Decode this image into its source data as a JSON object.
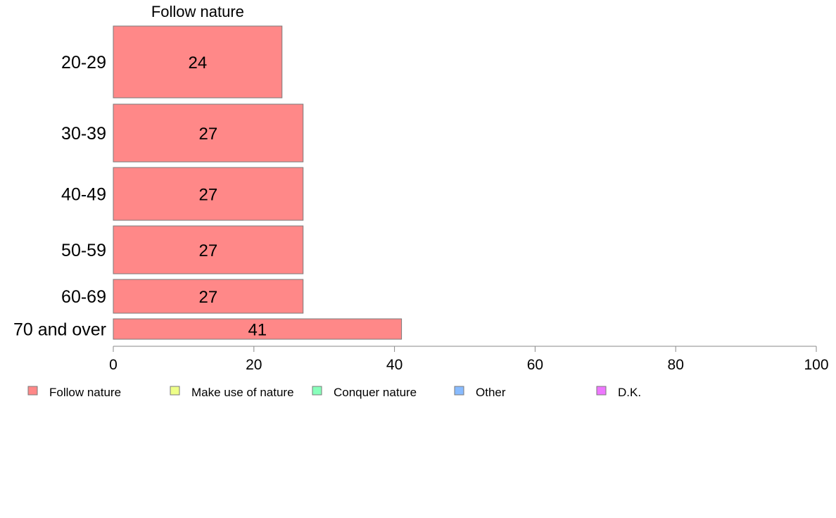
{
  "chart_data": {
    "type": "bar",
    "orientation": "horizontal",
    "stacked": true,
    "categories": [
      "20-29",
      "30-39",
      "40-49",
      "50-59",
      "60-69",
      "70 and over"
    ],
    "series": [
      {
        "name": "Follow nature",
        "values": [
          24,
          27,
          27,
          27,
          27,
          41
        ],
        "color": "#ff8888"
      }
    ],
    "legend": [
      {
        "label": "Follow nature",
        "color": "#ff8888"
      },
      {
        "label": "Make use of nature",
        "color": "#eeff88"
      },
      {
        "label": "Conquer nature",
        "color": "#88ffbb"
      },
      {
        "label": "Other",
        "color": "#88bbff"
      },
      {
        "label": "D.K.",
        "color": "#ee77ff"
      }
    ],
    "legend_position": "bottom",
    "xlim": [
      0,
      100
    ],
    "xticks": [
      0,
      20,
      40,
      60,
      80,
      100
    ],
    "grid": false
  }
}
